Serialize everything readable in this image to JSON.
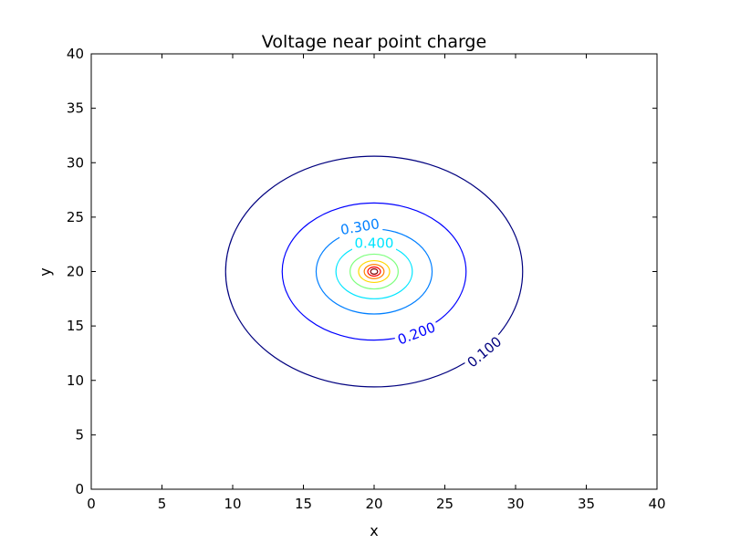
{
  "chart_data": {
    "type": "contour",
    "title": "Voltage near point charge",
    "xlabel": "x",
    "ylabel": "y",
    "xlim": [
      0,
      40
    ],
    "ylim": [
      0,
      40
    ],
    "xticks": [
      "0",
      "5",
      "10",
      "15",
      "20",
      "25",
      "30",
      "35",
      "40"
    ],
    "yticks": [
      "0",
      "5",
      "10",
      "15",
      "20",
      "25",
      "30",
      "35",
      "40"
    ],
    "grid": false,
    "center": [
      20,
      20
    ],
    "levels": [
      {
        "value": 0.1,
        "label": "0.100",
        "rx": 10.5,
        "ry": 10.6,
        "color": "#00007f"
      },
      {
        "value": 0.2,
        "label": "0.200",
        "rx": 6.5,
        "ry": 6.3,
        "color": "#0000ff"
      },
      {
        "value": 0.3,
        "label": "0.300",
        "rx": 4.1,
        "ry": 3.9,
        "color": "#007fff"
      },
      {
        "value": 0.4,
        "label": "0.400",
        "rx": 2.7,
        "ry": 2.5,
        "color": "#00e5ff"
      },
      {
        "value": 0.5,
        "label": "",
        "rx": 1.7,
        "ry": 1.6,
        "color": "#7fff7f"
      },
      {
        "value": 0.6,
        "label": "",
        "rx": 1.1,
        "ry": 1.0,
        "color": "#ffd700"
      },
      {
        "value": 0.7,
        "label": "",
        "rx": 0.7,
        "ry": 0.65,
        "color": "#ff7f00"
      },
      {
        "value": 0.8,
        "label": "",
        "rx": 0.45,
        "ry": 0.42,
        "color": "#ff0000"
      },
      {
        "value": 0.9,
        "label": "",
        "rx": 0.25,
        "ry": 0.24,
        "color": "#7f0000"
      }
    ],
    "label_points": {
      "0.100": [
        27.8,
        12.6
      ],
      "0.200": [
        23,
        14.3
      ],
      "0.300": [
        19,
        24.1
      ],
      "0.400": [
        20,
        22.6
      ]
    }
  }
}
